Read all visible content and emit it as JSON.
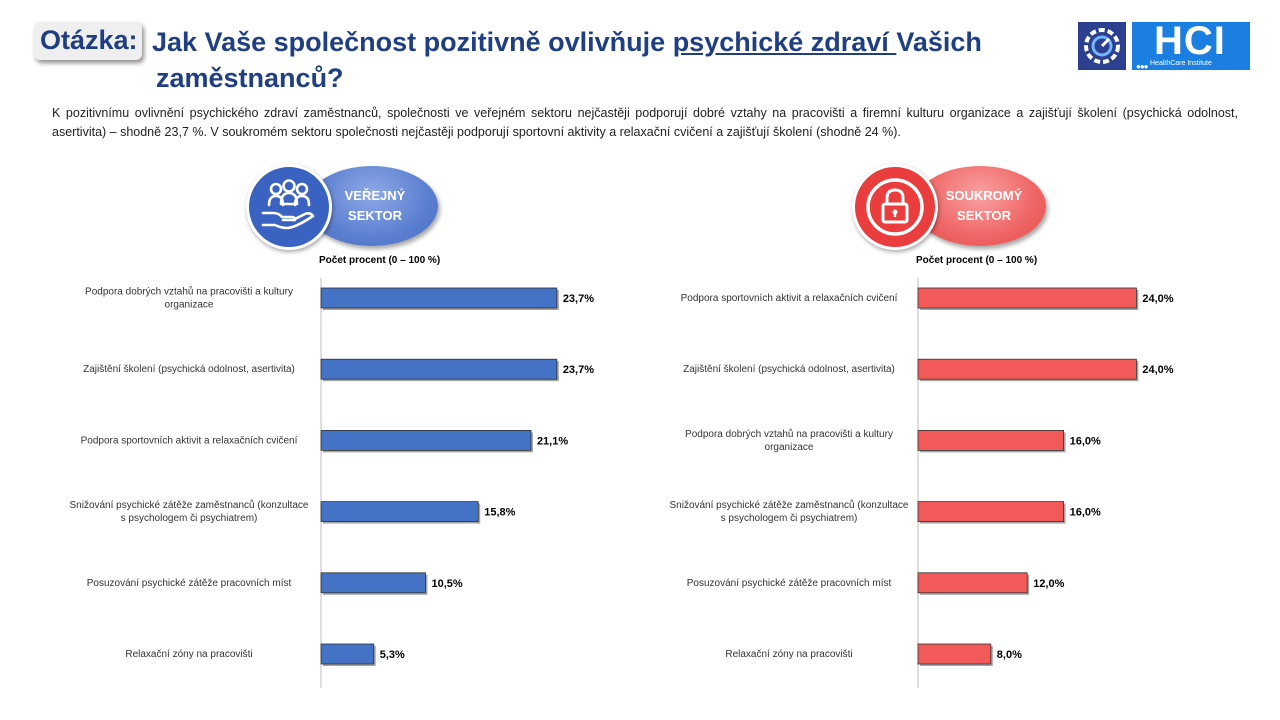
{
  "header": {
    "question_label": "Otázka:",
    "title_part1": "Jak Vaše společnost pozitivně ovlivňuje ",
    "title_underlined": "psychické zdraví ",
    "title_part2": "Vašich",
    "title_line2": "zaměstnanců?"
  },
  "logo": {
    "text": "HCI",
    "subtitle": "HealthCare Institute",
    "dots": "●●●"
  },
  "intro_text": "K pozitivnímu ovlivnění psychického zdraví zaměstnanců, společnosti ve veřejném sektoru nejčastěji podporují dobré vztahy na pracovišti a firemní kulturu organizace a zajišťují školení (psychická odolnost, asertivita) – shodně 23,7 %. V soukromém sektoru společnosti nejčastěji podporují sportovní aktivity a relaxační cvičení a zajišťují školení (shodně 24 %).",
  "colors": {
    "title_blue": "#1f3f82",
    "public_bar": "#4472c4",
    "public_pill": "#5b7fd0",
    "private_bar": "#f25a5a",
    "private_pill": "#ef6464",
    "axis": "#bfbfbf"
  },
  "public_sector": {
    "label_line1": "VEŘEJNÝ",
    "label_line2": "SEKTOR",
    "icon": "people-in-hand-icon"
  },
  "private_sector": {
    "label_line1": "SOUKROMÝ",
    "label_line2": "SEKTOR",
    "icon": "padlock-icon"
  },
  "chart_data": [
    {
      "type": "bar",
      "orientation": "horizontal",
      "axis_caption": "Počet procent  (0 – 100 %)",
      "xlim": [
        0,
        100
      ],
      "categories": [
        [
          "Podpora dobrých vztahů na pracovišti a kultury",
          "organizace"
        ],
        [
          "Zajištění školení (psychická odolnost, asertivita)"
        ],
        [
          "Podpora sportovních aktivit a relaxačních cvičení"
        ],
        [
          "Snižování psychické zátěže zaměstnanců (konzultace",
          "s psychologem či psychiatrem)"
        ],
        [
          "Posuzování psychické zátěže pracovních míst"
        ],
        [
          "Relaxační zóny na pracovišti"
        ]
      ],
      "values": [
        23.7,
        23.7,
        21.1,
        15.8,
        10.5,
        5.3
      ],
      "value_labels": [
        "23,7%",
        "23,7%",
        "21,1%",
        "15,8%",
        "10,5%",
        "5,3%"
      ],
      "color": "#4472c4"
    },
    {
      "type": "bar",
      "orientation": "horizontal",
      "axis_caption": "Počet procent  (0 – 100 %)",
      "xlim": [
        0,
        100
      ],
      "categories": [
        [
          "Podpora sportovních aktivit a relaxačních cvičení"
        ],
        [
          "Zajištění školení (psychická odolnost, asertivita)"
        ],
        [
          "Podpora dobrých vztahů na pracovišti a kultury",
          "organizace"
        ],
        [
          "Snižování psychické zátěže zaměstnanců (konzultace",
          "s psychologem či psychiatrem)"
        ],
        [
          "Posuzování psychické zátěže pracovních míst"
        ],
        [
          "Relaxační zóny na pracovišti"
        ]
      ],
      "values": [
        24.0,
        24.0,
        16.0,
        16.0,
        12.0,
        8.0
      ],
      "value_labels": [
        "24,0%",
        "24,0%",
        "16,0%",
        "16,0%",
        "12,0%",
        "8,0%"
      ],
      "color": "#f25a5a"
    }
  ]
}
